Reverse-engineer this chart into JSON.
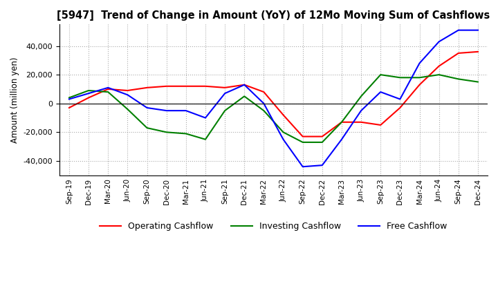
{
  "title": "[5947]  Trend of Change in Amount (YoY) of 12Mo Moving Sum of Cashflows",
  "ylabel": "Amount (million yen)",
  "x_labels": [
    "Sep-19",
    "Dec-19",
    "Mar-20",
    "Jun-20",
    "Sep-20",
    "Dec-20",
    "Mar-21",
    "Jun-21",
    "Sep-21",
    "Dec-21",
    "Mar-22",
    "Jun-22",
    "Sep-22",
    "Dec-22",
    "Mar-23",
    "Jun-23",
    "Sep-23",
    "Dec-23",
    "Mar-24",
    "Jun-24",
    "Sep-24",
    "Dec-24"
  ],
  "operating": [
    -3000,
    4000,
    10000,
    9000,
    11000,
    12000,
    12000,
    12000,
    11000,
    13000,
    8000,
    -8000,
    -23000,
    -23000,
    -13000,
    -13000,
    -15000,
    -3000,
    13000,
    26000,
    35000,
    36000
  ],
  "investing": [
    4000,
    9000,
    8000,
    -4000,
    -17000,
    -20000,
    -21000,
    -25000,
    -5000,
    5000,
    -5000,
    -20000,
    -27000,
    -27000,
    -13000,
    5000,
    20000,
    18000,
    18000,
    20000,
    17000,
    15000
  ],
  "free": [
    3000,
    7000,
    11000,
    6000,
    -3000,
    -5000,
    -5000,
    -10000,
    7000,
    13000,
    0,
    -25000,
    -44000,
    -43000,
    -25000,
    -5000,
    8000,
    3000,
    28000,
    43000,
    51000,
    51000
  ],
  "operating_color": "#ff0000",
  "investing_color": "#008000",
  "free_color": "#0000ff",
  "ylim": [
    -50000,
    55000
  ],
  "yticks": [
    -40000,
    -20000,
    0,
    20000,
    40000
  ],
  "background_color": "#ffffff",
  "grid_color": "#aaaaaa"
}
